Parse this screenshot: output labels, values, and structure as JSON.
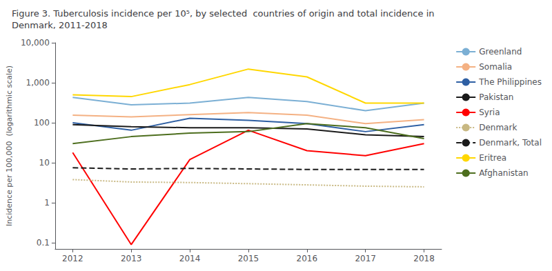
{
  "chart_data": {
    "type": "line",
    "title": "Figure 3. Tuberculosis incidence per 10⁵, by selected  countries of origin and total incidence in\nDenmark, 2011-2018",
    "ylabel": "Incidence per 100,000  (logarithmic scale)",
    "x": [
      2012,
      2013,
      2014,
      2015,
      2016,
      2017,
      2018
    ],
    "xlim": [
      2011.7,
      2018.3
    ],
    "xticks": [
      2012,
      2013,
      2014,
      2015,
      2016,
      2017,
      2018
    ],
    "ylim": [
      0.07,
      10000
    ],
    "yticks": [
      0.1,
      1,
      10,
      100,
      {
        "value": 1000,
        "label": "1,000"
      },
      {
        "value": 10000,
        "label": "10,000"
      }
    ],
    "log": "y",
    "grid": false,
    "legend": "right",
    "series": [
      {
        "name": "Greenland",
        "color": "#7bafd4",
        "line_style": "solid",
        "values": [
          430,
          280,
          310,
          430,
          340,
          200,
          310
        ]
      },
      {
        "name": "Somalia",
        "color": "#f4b183",
        "line_style": "solid",
        "values": [
          155,
          140,
          160,
          180,
          155,
          95,
          120
        ]
      },
      {
        "name": "The Philippines",
        "color": "#2e5fa3",
        "line_style": "solid",
        "values": [
          100,
          65,
          130,
          115,
          95,
          60,
          90
        ]
      },
      {
        "name": "Pakistan",
        "color": "#1a1a1a",
        "line_style": "solid",
        "values": [
          90,
          80,
          75,
          75,
          70,
          50,
          45
        ]
      },
      {
        "name": "Syria",
        "color": "#ff0000",
        "line_style": "solid",
        "values": [
          18,
          0.09,
          12,
          65,
          20,
          15,
          30
        ]
      },
      {
        "name": "Denmark",
        "color": "#c8b882",
        "line_style": "dotted",
        "values": [
          3.8,
          3.3,
          3.2,
          3.0,
          2.8,
          2.6,
          2.5
        ]
      },
      {
        "name": "Denmark, Total",
        "color": "#1a1a1a",
        "line_style": "dashed",
        "values": [
          7.5,
          7.0,
          7.2,
          7.0,
          6.8,
          6.8,
          6.8
        ]
      },
      {
        "name": "Eritrea",
        "color": "#ffd700",
        "line_style": "solid",
        "values": [
          500,
          450,
          900,
          2200,
          1400,
          310,
          310
        ]
      },
      {
        "name": "Afghanistan",
        "color": "#4d6e1e",
        "line_style": "solid",
        "values": [
          30,
          45,
          55,
          60,
          95,
          75,
          40
        ]
      }
    ]
  }
}
